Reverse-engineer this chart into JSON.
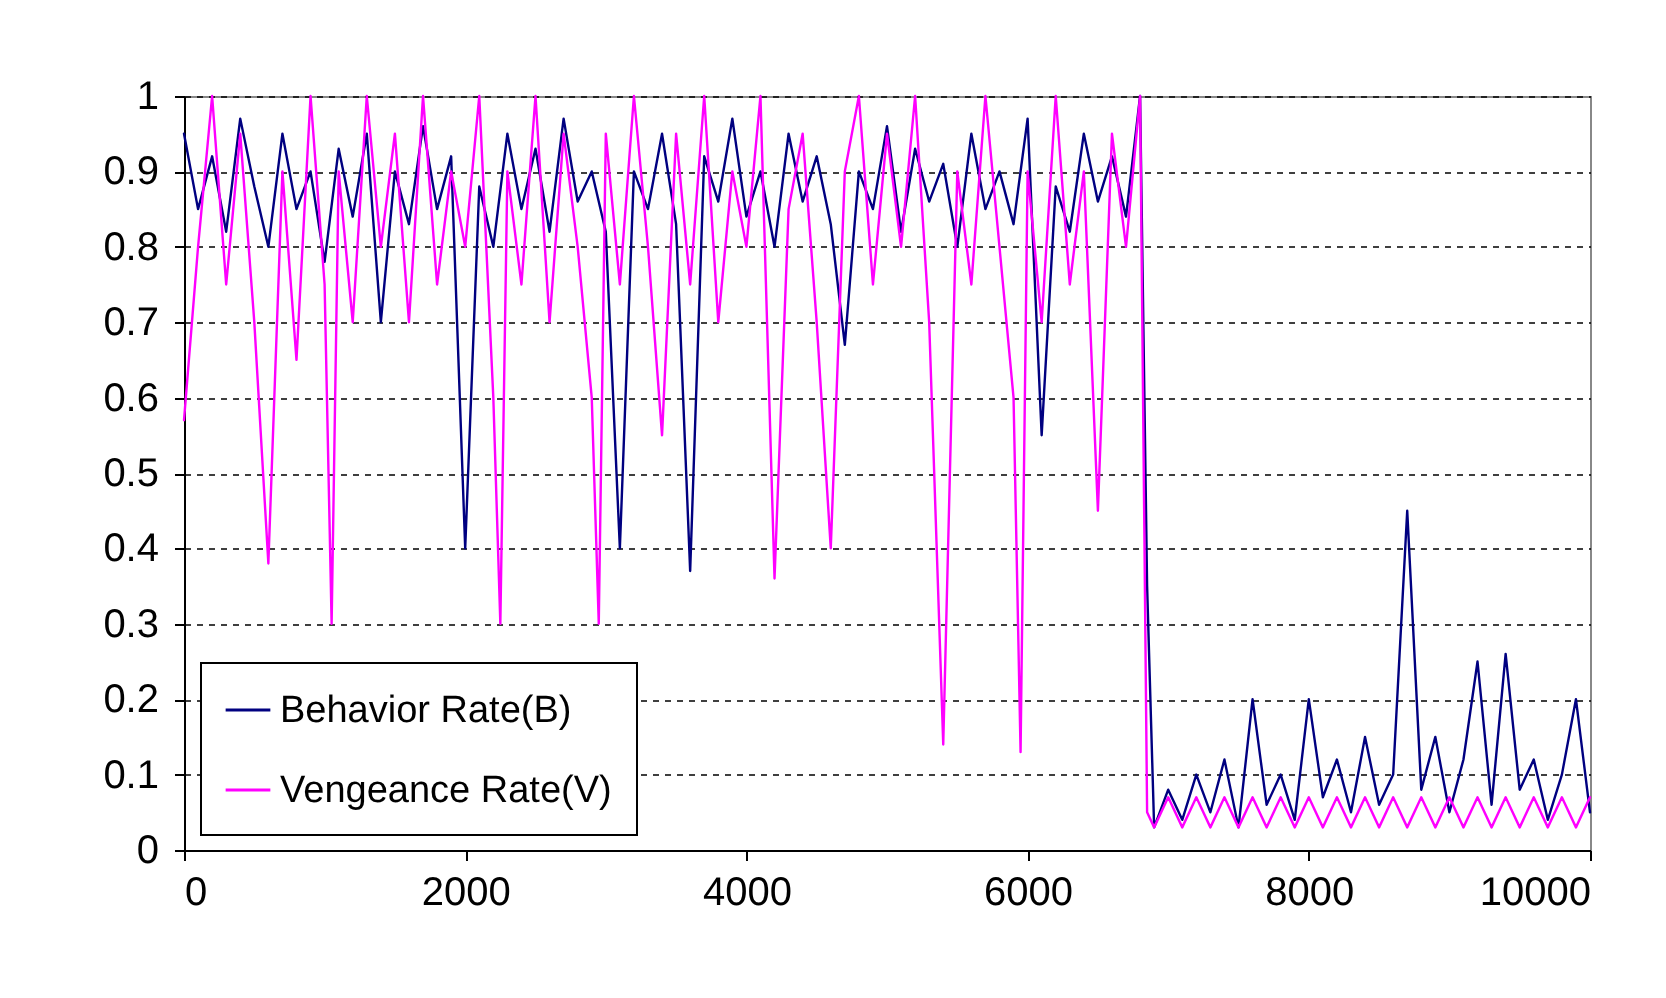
{
  "chart_data": {
    "type": "line",
    "xlim": [
      0,
      10000
    ],
    "xticks": [
      0,
      2000,
      4000,
      6000,
      8000,
      10000
    ],
    "ylim": [
      0,
      1
    ],
    "yticks": [
      0,
      0.1,
      0.2,
      0.3,
      0.4,
      0.5,
      0.6,
      0.7,
      0.8,
      0.9,
      1
    ],
    "grid": "y",
    "legend": "bottom left",
    "line_style": "solid",
    "marker": "none",
    "series": [
      {
        "name": "Behavior Rate(B)",
        "color": "#000080",
        "x": [
          0,
          100,
          200,
          300,
          400,
          500,
          600,
          700,
          800,
          900,
          1000,
          1100,
          1200,
          1300,
          1400,
          1500,
          1600,
          1700,
          1800,
          1900,
          2000,
          2100,
          2200,
          2300,
          2400,
          2500,
          2600,
          2700,
          2800,
          2900,
          3000,
          3100,
          3200,
          3300,
          3400,
          3500,
          3600,
          3700,
          3800,
          3900,
          4000,
          4100,
          4200,
          4300,
          4400,
          4500,
          4600,
          4700,
          4800,
          4900,
          5000,
          5100,
          5200,
          5300,
          5400,
          5500,
          5600,
          5700,
          5800,
          5900,
          6000,
          6100,
          6200,
          6300,
          6400,
          6500,
          6600,
          6700,
          6800,
          6850,
          6900,
          7000,
          7100,
          7200,
          7300,
          7400,
          7500,
          7600,
          7700,
          7800,
          7900,
          8000,
          8100,
          8200,
          8300,
          8400,
          8500,
          8600,
          8700,
          8800,
          8900,
          9000,
          9100,
          9200,
          9300,
          9400,
          9500,
          9600,
          9700,
          9800,
          9900,
          10000
        ],
        "values": [
          0.95,
          0.85,
          0.92,
          0.82,
          0.97,
          0.88,
          0.8,
          0.95,
          0.85,
          0.9,
          0.78,
          0.93,
          0.84,
          0.95,
          0.7,
          0.9,
          0.83,
          0.96,
          0.85,
          0.92,
          0.4,
          0.88,
          0.8,
          0.95,
          0.85,
          0.93,
          0.82,
          0.97,
          0.86,
          0.9,
          0.82,
          0.4,
          0.9,
          0.85,
          0.95,
          0.83,
          0.37,
          0.92,
          0.86,
          0.97,
          0.84,
          0.9,
          0.8,
          0.95,
          0.86,
          0.92,
          0.83,
          0.67,
          0.9,
          0.85,
          0.96,
          0.82,
          0.93,
          0.86,
          0.91,
          0.8,
          0.95,
          0.85,
          0.9,
          0.83,
          0.97,
          0.55,
          0.88,
          0.82,
          0.95,
          0.86,
          0.92,
          0.84,
          1,
          0.35,
          0.03,
          0.08,
          0.04,
          0.1,
          0.05,
          0.12,
          0.03,
          0.2,
          0.06,
          0.1,
          0.04,
          0.2,
          0.07,
          0.12,
          0.05,
          0.15,
          0.06,
          0.1,
          0.45,
          0.08,
          0.15,
          0.05,
          0.12,
          0.25,
          0.06,
          0.26,
          0.08,
          0.12,
          0.04,
          0.1,
          0.2,
          0.05
        ]
      },
      {
        "name": "Vengeance Rate(V)",
        "color": "#ff00ff",
        "x": [
          0,
          100,
          200,
          300,
          400,
          500,
          600,
          700,
          800,
          900,
          1000,
          1050,
          1100,
          1200,
          1300,
          1400,
          1500,
          1600,
          1700,
          1800,
          1900,
          2000,
          2100,
          2200,
          2250,
          2300,
          2400,
          2500,
          2600,
          2700,
          2800,
          2900,
          2950,
          3000,
          3100,
          3200,
          3300,
          3400,
          3500,
          3600,
          3700,
          3800,
          3900,
          4000,
          4100,
          4200,
          4300,
          4400,
          4500,
          4600,
          4700,
          4800,
          4900,
          5000,
          5100,
          5200,
          5300,
          5400,
          5500,
          5600,
          5700,
          5800,
          5900,
          5950,
          6000,
          6100,
          6200,
          6300,
          6400,
          6500,
          6600,
          6700,
          6800,
          6850,
          6900,
          7000,
          7100,
          7200,
          7300,
          7400,
          7500,
          7600,
          7700,
          7800,
          7900,
          8000,
          8100,
          8200,
          8300,
          8400,
          8500,
          8600,
          8700,
          8800,
          8900,
          9000,
          9100,
          9200,
          9300,
          9400,
          9500,
          9600,
          9700,
          9800,
          9900,
          10000
        ],
        "values": [
          0.57,
          0.8,
          1,
          0.75,
          0.95,
          0.7,
          0.38,
          0.9,
          0.65,
          1,
          0.75,
          0.3,
          0.9,
          0.7,
          1,
          0.8,
          0.95,
          0.7,
          1,
          0.75,
          0.9,
          0.8,
          1,
          0.6,
          0.3,
          0.9,
          0.75,
          1,
          0.7,
          0.95,
          0.8,
          0.6,
          0.3,
          0.95,
          0.75,
          1,
          0.8,
          0.55,
          0.95,
          0.75,
          1,
          0.7,
          0.9,
          0.8,
          1,
          0.36,
          0.85,
          0.95,
          0.7,
          0.4,
          0.9,
          1,
          0.75,
          0.95,
          0.8,
          1,
          0.7,
          0.14,
          0.9,
          0.75,
          1,
          0.8,
          0.6,
          0.13,
          0.9,
          0.7,
          1,
          0.75,
          0.9,
          0.45,
          0.95,
          0.8,
          1,
          0.05,
          0.03,
          0.07,
          0.03,
          0.07,
          0.03,
          0.07,
          0.03,
          0.07,
          0.03,
          0.07,
          0.03,
          0.07,
          0.03,
          0.07,
          0.03,
          0.07,
          0.03,
          0.07,
          0.03,
          0.07,
          0.03,
          0.07,
          0.03,
          0.07,
          0.03,
          0.07,
          0.03,
          0.07,
          0.03,
          0.07,
          0.03,
          0.07
        ]
      }
    ]
  }
}
